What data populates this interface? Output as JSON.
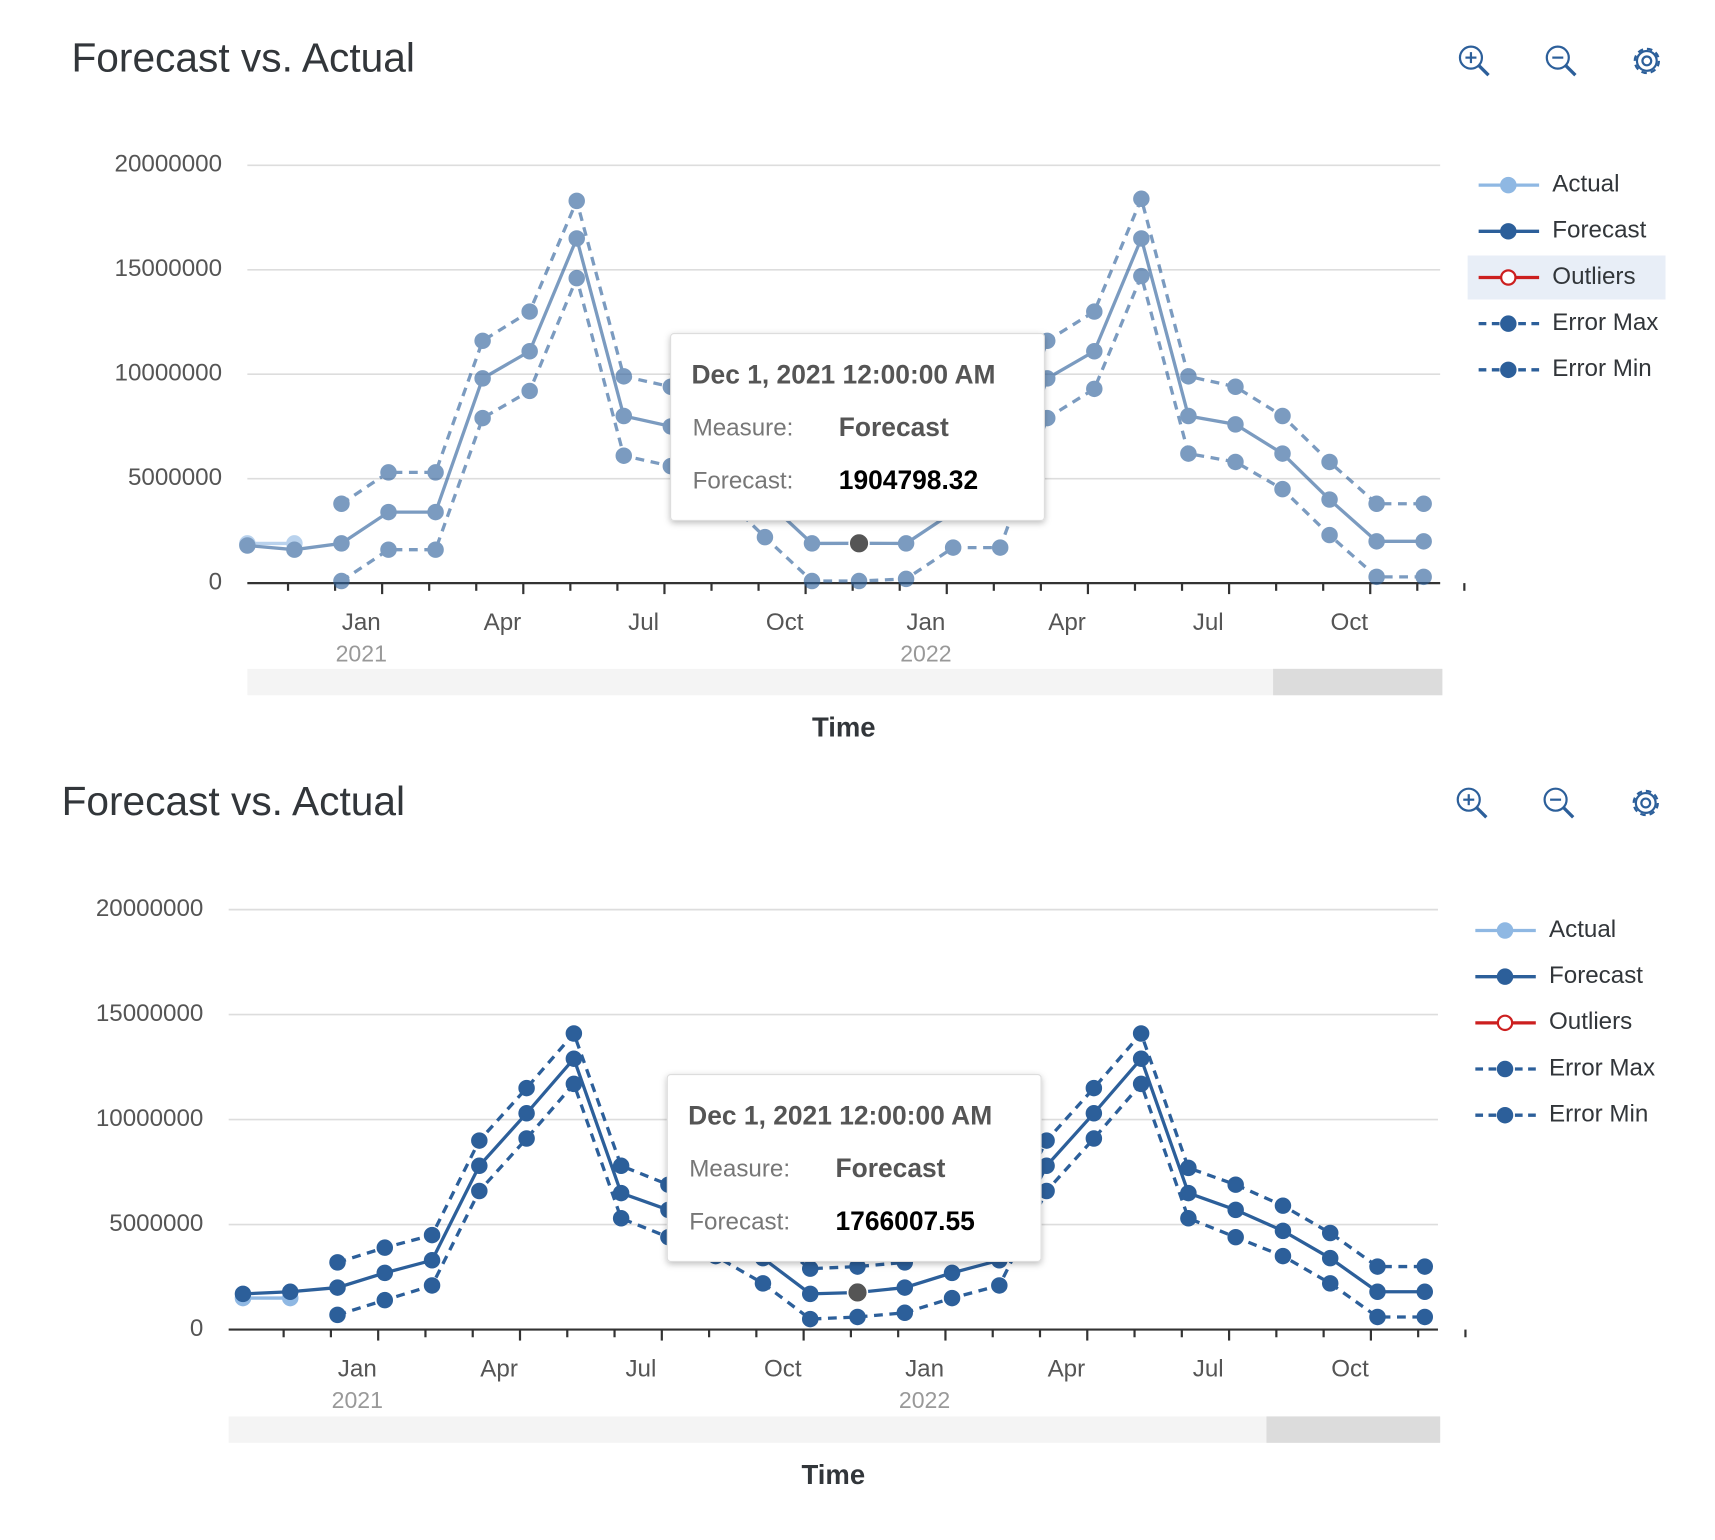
{
  "chart_data": [
    {
      "type": "line",
      "title": "Forecast vs. Actual",
      "x_title": "Time",
      "categories": [
        null,
        null,
        "Jan",
        null,
        null,
        "Apr",
        null,
        null,
        "Jul",
        null,
        null,
        "Oct",
        null,
        null,
        "Jan",
        null,
        null,
        "Apr",
        null,
        null,
        "Jul",
        null,
        null,
        "Oct",
        null,
        null
      ],
      "category_years": [
        null,
        null,
        "2021",
        null,
        null,
        null,
        null,
        null,
        null,
        null,
        null,
        null,
        null,
        null,
        "2022",
        null,
        null,
        null,
        null,
        null,
        null,
        null,
        null,
        null,
        null,
        null
      ],
      "ylim": [
        0,
        20000000
      ],
      "yticks": [
        0,
        5000000,
        10000000,
        15000000,
        20000000
      ],
      "grid": true,
      "faded": true,
      "highlighted_legend": 2,
      "series": [
        {
          "name": "Actual",
          "color": "#8fb8e3",
          "dash": false,
          "marker": "filled",
          "values": [
            1900000,
            1900000,
            null,
            null,
            null,
            null,
            null,
            null,
            null,
            null,
            null,
            null,
            null,
            null,
            null,
            null,
            null,
            null,
            null,
            null,
            null,
            null,
            null,
            null,
            null,
            null
          ]
        },
        {
          "name": "Forecast",
          "color": "#2c5f9a",
          "dash": false,
          "marker": "filled",
          "values": [
            1800000,
            1600000,
            1900000,
            3400000,
            3400000,
            9800000,
            11100000,
            16500000,
            8000000,
            7500000,
            6200000,
            4000000,
            1900000,
            1904798.32,
            1900000,
            3400000,
            3400000,
            9800000,
            11100000,
            16500000,
            8000000,
            7600000,
            6200000,
            4000000,
            2000000,
            2000000
          ]
        },
        {
          "name": "Outliers",
          "color": "#cc1f1f",
          "dash": false,
          "marker": "hollow",
          "values": [
            null,
            null,
            null,
            null,
            null,
            null,
            null,
            null,
            null,
            null,
            null,
            null,
            null,
            null,
            null,
            null,
            null,
            null,
            null,
            null,
            null,
            null,
            null,
            null,
            null,
            null
          ]
        },
        {
          "name": "Error Max",
          "color": "#2c5f9a",
          "dash": true,
          "marker": "filled",
          "values": [
            null,
            null,
            3800000,
            5300000,
            5300000,
            11600000,
            13000000,
            18300000,
            9900000,
            9400000,
            8000000,
            5800000,
            3800000,
            3800000,
            3800000,
            5300000,
            5300000,
            11600000,
            13000000,
            18400000,
            9900000,
            9400000,
            8000000,
            5800000,
            3800000,
            3800000
          ]
        },
        {
          "name": "Error Min",
          "color": "#2c5f9a",
          "dash": true,
          "marker": "filled",
          "values": [
            null,
            null,
            100000,
            1600000,
            1600000,
            7900000,
            9200000,
            14600000,
            6100000,
            5600000,
            4400000,
            2200000,
            100000,
            100000,
            200000,
            1700000,
            1700000,
            7900000,
            9300000,
            14700000,
            6200000,
            5800000,
            4500000,
            2300000,
            300000,
            300000
          ]
        }
      ],
      "tooltip": {
        "title": "Dec 1, 2021 12:00:00 AM",
        "measure_label": "Measure:",
        "value_label": "Forecast:",
        "series": 1,
        "index": 13
      }
    },
    {
      "type": "line",
      "title": "Forecast vs. Actual",
      "x_title": "Time",
      "categories": [
        null,
        null,
        "Jan",
        null,
        null,
        "Apr",
        null,
        null,
        "Jul",
        null,
        null,
        "Oct",
        null,
        null,
        "Jan",
        null,
        null,
        "Apr",
        null,
        null,
        "Jul",
        null,
        null,
        "Oct",
        null,
        null
      ],
      "category_years": [
        null,
        null,
        "2021",
        null,
        null,
        null,
        null,
        null,
        null,
        null,
        null,
        null,
        null,
        null,
        "2022",
        null,
        null,
        null,
        null,
        null,
        null,
        null,
        null,
        null,
        null,
        null
      ],
      "ylim": [
        0,
        20000000
      ],
      "yticks": [
        0,
        5000000,
        10000000,
        15000000,
        20000000
      ],
      "grid": true,
      "faded": false,
      "series": [
        {
          "name": "Actual",
          "color": "#8fb8e3",
          "dash": false,
          "marker": "filled",
          "values": [
            1500000,
            1500000,
            null,
            null,
            null,
            null,
            null,
            null,
            null,
            null,
            null,
            null,
            null,
            null,
            null,
            null,
            null,
            null,
            null,
            null,
            null,
            null,
            null,
            null,
            null,
            null
          ]
        },
        {
          "name": "Forecast",
          "color": "#2c5f9a",
          "dash": false,
          "marker": "filled",
          "values": [
            1700000,
            1800000,
            2000000,
            2700000,
            3300000,
            7800000,
            10300000,
            12900000,
            6500000,
            5700000,
            4800000,
            3400000,
            1700000,
            1766007.55,
            2000000,
            2700000,
            3300000,
            7800000,
            10300000,
            12900000,
            6500000,
            5700000,
            4700000,
            3400000,
            1800000,
            1800000
          ]
        },
        {
          "name": "Outliers",
          "color": "#cc1f1f",
          "dash": false,
          "marker": "hollow",
          "values": [
            null,
            null,
            null,
            null,
            null,
            null,
            null,
            null,
            null,
            null,
            null,
            null,
            null,
            null,
            null,
            null,
            null,
            null,
            null,
            null,
            null,
            null,
            null,
            null,
            null,
            null
          ]
        },
        {
          "name": "Error Max",
          "color": "#2c5f9a",
          "dash": true,
          "marker": "filled",
          "values": [
            null,
            null,
            3200000,
            3900000,
            4500000,
            9000000,
            11500000,
            14100000,
            7800000,
            6900000,
            6000000,
            4600000,
            2900000,
            3000000,
            3200000,
            3900000,
            4500000,
            9000000,
            11500000,
            14100000,
            7700000,
            6900000,
            5900000,
            4600000,
            3000000,
            3000000
          ]
        },
        {
          "name": "Error Min",
          "color": "#2c5f9a",
          "dash": true,
          "marker": "filled",
          "values": [
            null,
            null,
            700000,
            1400000,
            2100000,
            6600000,
            9100000,
            11700000,
            5300000,
            4400000,
            3500000,
            2200000,
            500000,
            600000,
            800000,
            1500000,
            2100000,
            6600000,
            9100000,
            11700000,
            5300000,
            4400000,
            3500000,
            2200000,
            600000,
            600000
          ]
        }
      ],
      "tooltip": {
        "title": "Dec 1, 2021 12:00:00 AM",
        "measure_label": "Measure:",
        "value_label": "Forecast:",
        "series": 1,
        "index": 13
      }
    }
  ]
}
